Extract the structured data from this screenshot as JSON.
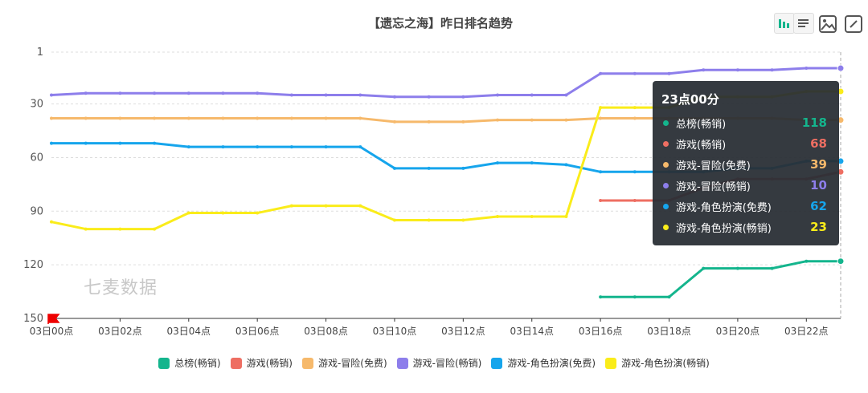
{
  "chart_data": {
    "type": "line",
    "title": "【遗忘之海】昨日排名趋势",
    "y_inverted": true,
    "ylim": [
      1,
      150
    ],
    "y_ticks": [
      1,
      30,
      60,
      90,
      120,
      150
    ],
    "x": [
      "03日00点",
      "03日01点",
      "03日02点",
      "03日03点",
      "03日04点",
      "03日05点",
      "03日06点",
      "03日07点",
      "03日08点",
      "03日09点",
      "03日10点",
      "03日11点",
      "03日12点",
      "03日13点",
      "03日14点",
      "03日15点",
      "03日16点",
      "03日17点",
      "03日18点",
      "03日19点",
      "03日20点",
      "03日21点",
      "03日22点",
      "03日23点"
    ],
    "x_tick_labels": [
      "03日00点",
      "03日02点",
      "03日04点",
      "03日06点",
      "03日08点",
      "03日10点",
      "03日12点",
      "03日14点",
      "03日16点",
      "03日18点",
      "03日20点",
      "03日22点"
    ],
    "series": [
      {
        "name": "总榜(畅销)",
        "color": "#14b58d",
        "values": [
          null,
          null,
          null,
          null,
          null,
          null,
          null,
          null,
          null,
          null,
          null,
          null,
          null,
          null,
          null,
          null,
          138,
          138,
          138,
          122,
          122,
          122,
          118,
          118
        ]
      },
      {
        "name": "游戏(畅销)",
        "color": "#ee6e62",
        "values": [
          null,
          null,
          null,
          null,
          null,
          null,
          null,
          null,
          null,
          null,
          null,
          null,
          null,
          null,
          null,
          null,
          84,
          84,
          84,
          77,
          72,
          72,
          72,
          68
        ]
      },
      {
        "name": "游戏-冒险(免费)",
        "color": "#f6b96b",
        "values": [
          38,
          38,
          38,
          38,
          38,
          38,
          38,
          38,
          38,
          38,
          40,
          40,
          40,
          39,
          39,
          39,
          38,
          38,
          38,
          38,
          38,
          38,
          39,
          39
        ]
      },
      {
        "name": "游戏-冒险(畅销)",
        "color": "#8d7eeb",
        "values": [
          25,
          24,
          24,
          24,
          24,
          24,
          24,
          25,
          25,
          25,
          26,
          26,
          26,
          25,
          25,
          25,
          13,
          13,
          13,
          11,
          11,
          11,
          10,
          10
        ]
      },
      {
        "name": "游戏-角色扮演(免费)",
        "color": "#16a5ec",
        "values": [
          52,
          52,
          52,
          52,
          54,
          54,
          54,
          54,
          54,
          54,
          66,
          66,
          66,
          63,
          63,
          64,
          68,
          68,
          68,
          68,
          66,
          66,
          62,
          62
        ]
      },
      {
        "name": "游戏-角色扮演(畅销)",
        "color": "#faec1a",
        "values": [
          96,
          100,
          100,
          100,
          91,
          91,
          91,
          87,
          87,
          87,
          95,
          95,
          95,
          93,
          93,
          93,
          32,
          32,
          32,
          26,
          26,
          26,
          23,
          23
        ]
      }
    ]
  },
  "tooltip": {
    "title": "23点00分",
    "rows": [
      {
        "name": "总榜(畅销)",
        "value": "118",
        "color": "#14b58d"
      },
      {
        "name": "游戏(畅销)",
        "value": "68",
        "color": "#ee6e62"
      },
      {
        "name": "游戏-冒险(免费)",
        "value": "39",
        "color": "#f6b96b"
      },
      {
        "name": "游戏-冒险(畅销)",
        "value": "10",
        "color": "#8d7eeb"
      },
      {
        "name": "游戏-角色扮演(免费)",
        "value": "62",
        "color": "#16a5ec"
      },
      {
        "name": "游戏-角色扮演(畅销)",
        "value": "23",
        "color": "#faec1a"
      }
    ]
  },
  "watermark": "七麦数据",
  "toolbar": {
    "icons": [
      "bar-chart-icon",
      "data-view-icon",
      "save-image-icon",
      "restore-icon"
    ]
  }
}
